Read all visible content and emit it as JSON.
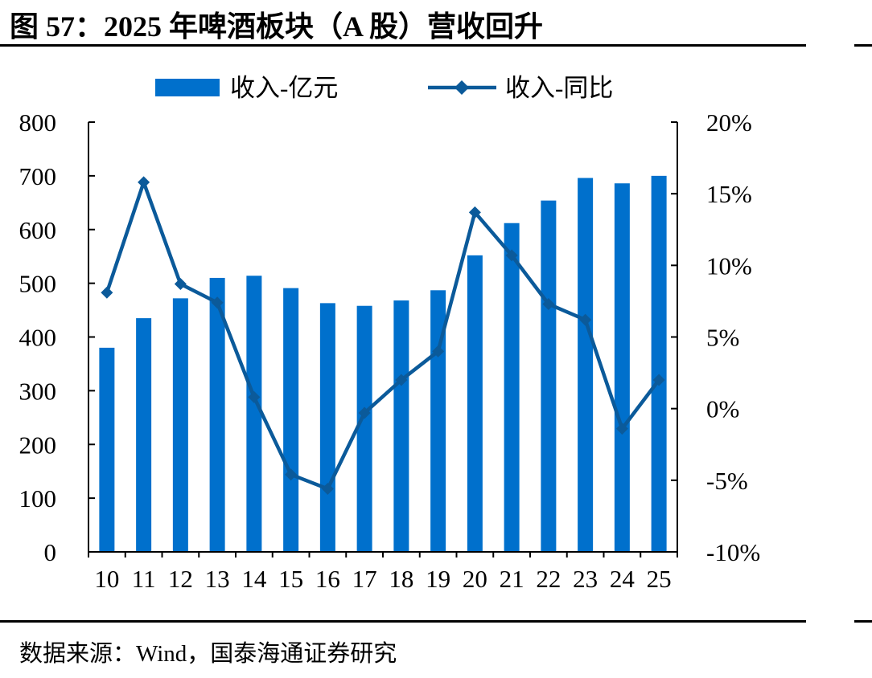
{
  "figure": {
    "title": "图 57：2025 年啤酒板块（A 股）营收回升",
    "source": "数据来源：Wind，国泰海通证券研究"
  },
  "colors": {
    "bar": "#0070CC",
    "line": "#0B5A9A",
    "axis": "#000000"
  },
  "chart_data": {
    "type": "bar",
    "categories": [
      "10",
      "11",
      "12",
      "13",
      "14",
      "15",
      "16",
      "17",
      "18",
      "19",
      "20",
      "21",
      "22",
      "23",
      "24",
      "25"
    ],
    "series": [
      {
        "name": "收入-亿元",
        "type": "bar",
        "axis": "left",
        "values": [
          380,
          435,
          472,
          510,
          514,
          491,
          463,
          458,
          468,
          487,
          552,
          612,
          654,
          696,
          686,
          700
        ]
      },
      {
        "name": "收入-同比",
        "type": "line",
        "axis": "right",
        "marker": "diamond",
        "values": [
          8.1,
          15.8,
          8.7,
          7.4,
          0.8,
          -4.6,
          -5.6,
          -0.3,
          2.0,
          4.0,
          13.7,
          10.7,
          7.3,
          6.2,
          -1.4,
          2.0
        ]
      }
    ],
    "y_left": {
      "lim": [
        0,
        800
      ],
      "ticks": [
        "0",
        "100",
        "200",
        "300",
        "400",
        "500",
        "600",
        "700",
        "800"
      ]
    },
    "y_right": {
      "lim": [
        -10,
        20
      ],
      "ticks": [
        "-10%",
        "-5%",
        "0%",
        "5%",
        "10%",
        "15%",
        "20%"
      ]
    },
    "legend": "top",
    "grid": false
  }
}
